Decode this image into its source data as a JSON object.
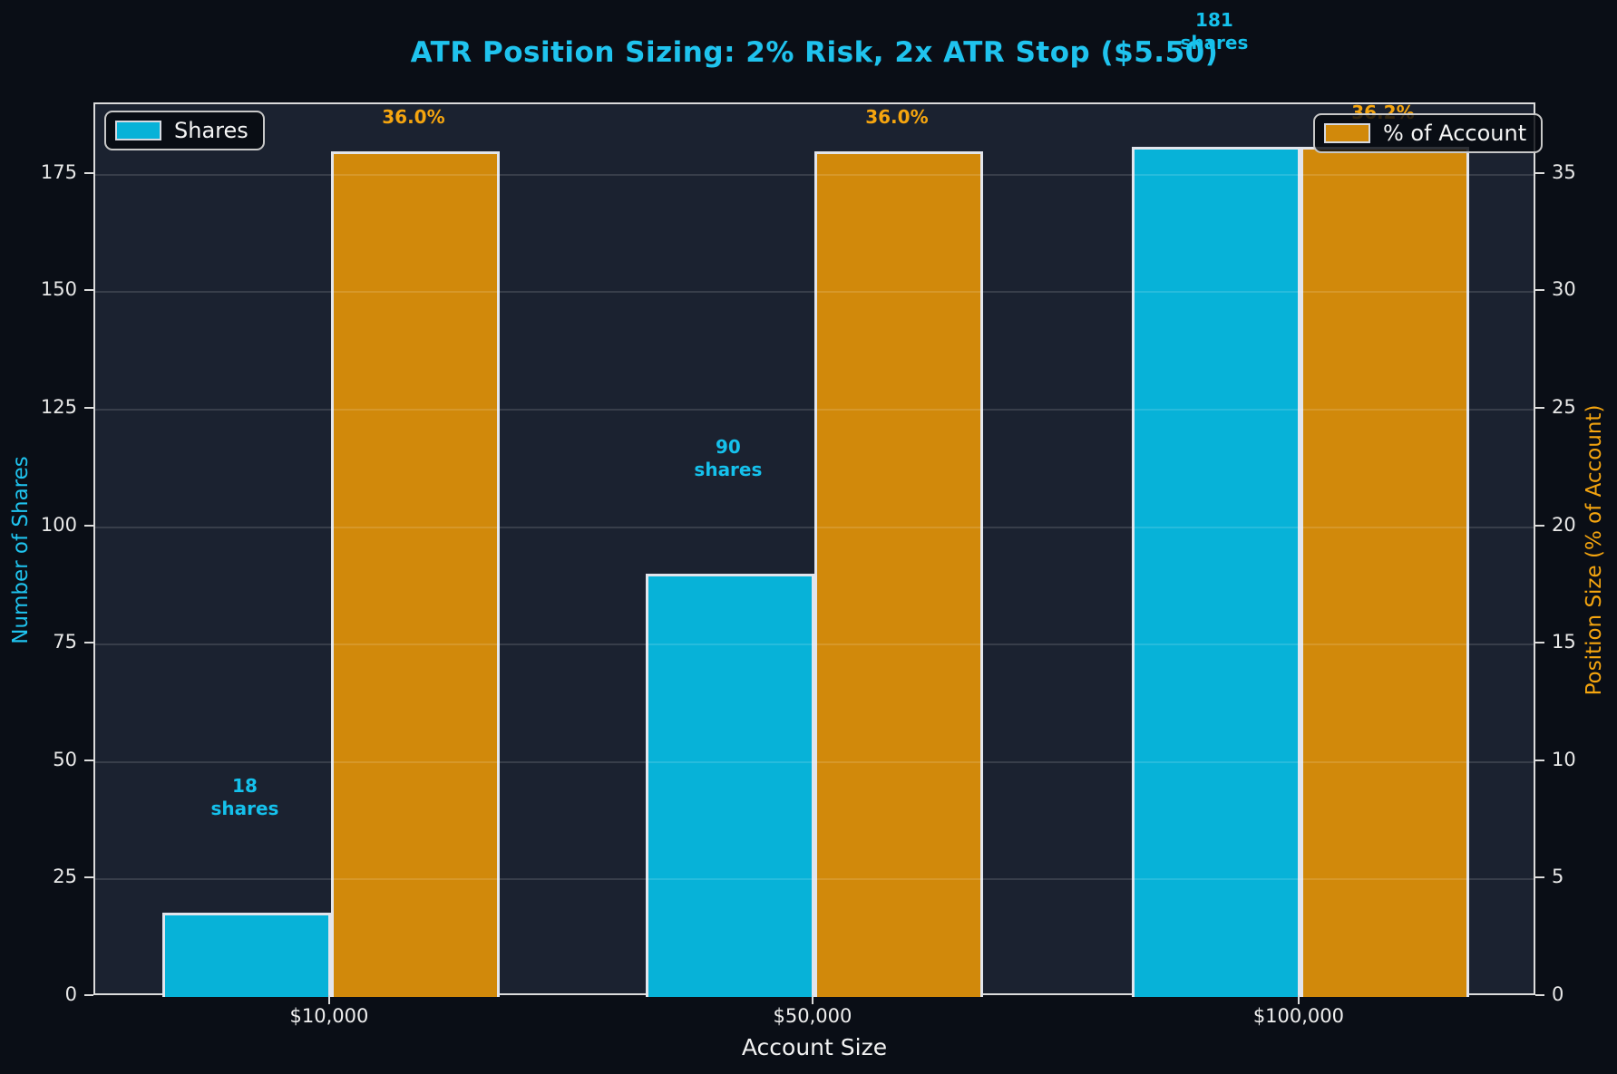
{
  "colors": {
    "background": "#0a0e16",
    "plot_background": "#1b2230",
    "shares_bar": "#07b2d8",
    "pct_bar": "#d1890b",
    "title_text": "#1fc3ee",
    "shares_text": "#15c1ec",
    "pct_text": "#f5a50f",
    "tick_text": "#e8e8e8",
    "spine": "#dcdcdc"
  },
  "chart_data": {
    "type": "bar",
    "title": "ATR Position Sizing: 2% Risk, 2x ATR Stop ($5.50)",
    "xlabel": "Account Size",
    "ylabel_left": "Number of Shares",
    "ylabel_right": "Position Size (% of Account)",
    "categories": [
      "$10,000",
      "$50,000",
      "$100,000"
    ],
    "series": [
      {
        "name": "Shares",
        "axis": "left",
        "color": "#07b2d8",
        "values": [
          18,
          90,
          181
        ],
        "bar_labels": [
          "18\nshares",
          "90\nshares",
          "181\nshares"
        ]
      },
      {
        "name": "% of Account",
        "axis": "right",
        "color": "#d1890b",
        "values": [
          36.0,
          36.0,
          36.2
        ],
        "bar_labels": [
          "36.0%",
          "36.0%",
          "36.2%"
        ]
      }
    ],
    "left_axis": {
      "ticks": [
        0,
        25,
        50,
        75,
        100,
        125,
        150,
        175
      ],
      "range": [
        0,
        190
      ]
    },
    "right_axis": {
      "ticks": [
        0,
        5,
        10,
        15,
        20,
        25,
        30,
        35
      ],
      "range": [
        0,
        38
      ]
    },
    "grid": "horizontal",
    "legend_position": "upper-left and upper-right"
  }
}
